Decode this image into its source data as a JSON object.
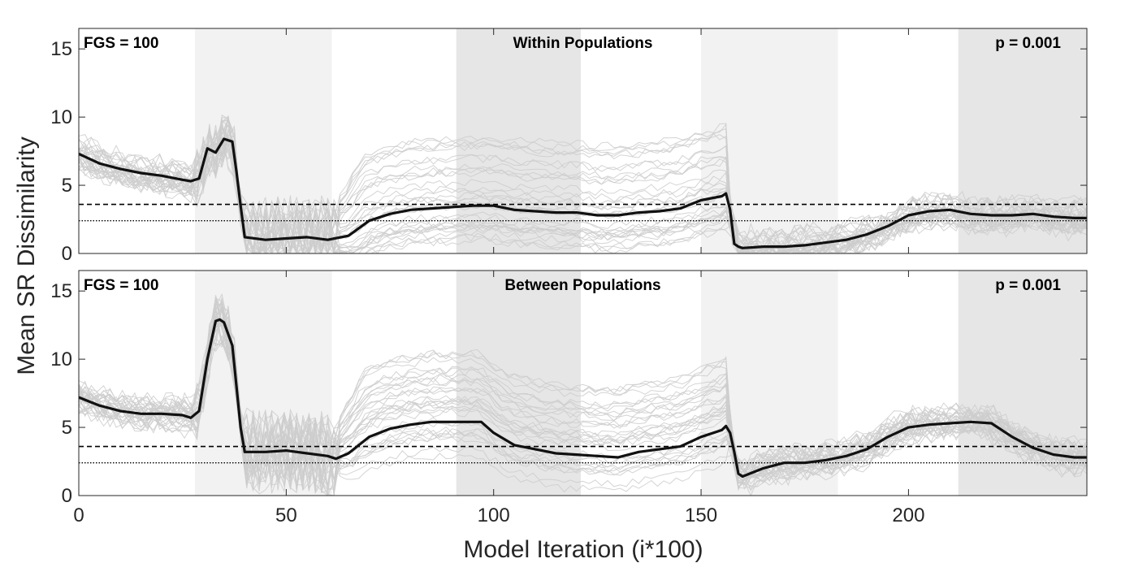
{
  "figure": {
    "ylabel": "Mean SR Dissimilarity",
    "xlabel": "Model Iteration (i*100)"
  },
  "colors": {
    "band_light": "#f2f2f2",
    "band_dark": "#e6e6e6",
    "thin_lines": "#cccccc",
    "mean_line": "#111111"
  },
  "chart_data": [
    {
      "type": "line",
      "title": "Within Populations",
      "annotation_left": "FGS = 100",
      "annotation_right": "p = 0.001",
      "xlim": [
        0,
        243
      ],
      "ylim": [
        0,
        16.5
      ],
      "xticks": [
        0,
        50,
        100,
        150,
        200
      ],
      "yticks": [
        0,
        5,
        10,
        15
      ],
      "shaded_bands": [
        {
          "x0": 28,
          "x1": 61,
          "shade": "light"
        },
        {
          "x0": 91,
          "x1": 121,
          "shade": "dark"
        },
        {
          "x0": 150,
          "x1": 183,
          "shade": "light"
        },
        {
          "x0": 212,
          "x1": 243,
          "shade": "dark"
        }
      ],
      "ref_lines": [
        {
          "y": 3.6,
          "style": "dashed"
        },
        {
          "y": 2.4,
          "style": "dotted"
        }
      ],
      "mean_series": {
        "x": [
          0,
          5,
          10,
          15,
          20,
          25,
          27,
          29,
          31,
          33,
          35,
          37,
          38,
          39,
          40,
          45,
          50,
          55,
          60,
          65,
          70,
          75,
          80,
          85,
          90,
          95,
          100,
          105,
          110,
          115,
          120,
          125,
          130,
          135,
          140,
          145,
          150,
          155,
          156,
          157,
          158,
          159,
          160,
          165,
          170,
          175,
          180,
          185,
          190,
          195,
          200,
          205,
          210,
          215,
          220,
          225,
          230,
          235,
          240,
          243
        ],
        "y": [
          7.3,
          6.6,
          6.2,
          5.9,
          5.7,
          5.4,
          5.3,
          5.5,
          7.7,
          7.4,
          8.4,
          8.2,
          6.0,
          3.5,
          1.2,
          1.0,
          1.1,
          1.2,
          1.0,
          1.3,
          2.4,
          2.9,
          3.2,
          3.3,
          3.4,
          3.5,
          3.5,
          3.2,
          3.1,
          3.0,
          3.0,
          2.8,
          2.8,
          3.0,
          3.1,
          3.3,
          3.9,
          4.2,
          4.4,
          3.2,
          0.7,
          0.5,
          0.4,
          0.5,
          0.5,
          0.6,
          0.8,
          1.0,
          1.4,
          2.0,
          2.8,
          3.1,
          3.2,
          2.9,
          2.8,
          2.8,
          2.9,
          2.7,
          2.6,
          2.6
        ]
      }
    },
    {
      "type": "line",
      "title": "Between Populations",
      "annotation_left": "FGS = 100",
      "annotation_right": "p = 0.001",
      "xlim": [
        0,
        243
      ],
      "ylim": [
        0,
        16.5
      ],
      "xticks": [
        0,
        50,
        100,
        150,
        200
      ],
      "yticks": [
        0,
        5,
        10,
        15
      ],
      "shaded_bands": [
        {
          "x0": 28,
          "x1": 61,
          "shade": "light"
        },
        {
          "x0": 91,
          "x1": 121,
          "shade": "dark"
        },
        {
          "x0": 150,
          "x1": 183,
          "shade": "light"
        },
        {
          "x0": 212,
          "x1": 243,
          "shade": "dark"
        }
      ],
      "ref_lines": [
        {
          "y": 3.6,
          "style": "dashed"
        },
        {
          "y": 2.4,
          "style": "dotted"
        }
      ],
      "mean_series": {
        "x": [
          0,
          5,
          10,
          15,
          20,
          25,
          27,
          29,
          31,
          33,
          34,
          35,
          37,
          38,
          39,
          40,
          45,
          50,
          55,
          60,
          62,
          65,
          70,
          75,
          80,
          85,
          90,
          95,
          97,
          100,
          105,
          110,
          115,
          120,
          125,
          130,
          135,
          140,
          145,
          150,
          155,
          156,
          157,
          158,
          159,
          160,
          165,
          170,
          175,
          180,
          185,
          190,
          195,
          200,
          205,
          210,
          215,
          220,
          225,
          230,
          235,
          240,
          243
        ],
        "y": [
          7.2,
          6.6,
          6.2,
          6.0,
          6.0,
          5.9,
          5.7,
          6.2,
          10.0,
          12.8,
          12.9,
          12.7,
          11.0,
          8.0,
          5.0,
          3.2,
          3.2,
          3.3,
          3.1,
          2.9,
          2.7,
          3.1,
          4.3,
          4.9,
          5.2,
          5.4,
          5.4,
          5.4,
          5.4,
          4.6,
          3.7,
          3.4,
          3.1,
          3.0,
          2.9,
          2.8,
          3.2,
          3.4,
          3.6,
          4.3,
          4.8,
          5.1,
          4.6,
          3.2,
          1.6,
          1.4,
          2.0,
          2.4,
          2.4,
          2.6,
          2.9,
          3.4,
          4.3,
          5.0,
          5.2,
          5.3,
          5.4,
          5.3,
          4.3,
          3.5,
          3.0,
          2.8,
          2.8
        ]
      }
    }
  ]
}
